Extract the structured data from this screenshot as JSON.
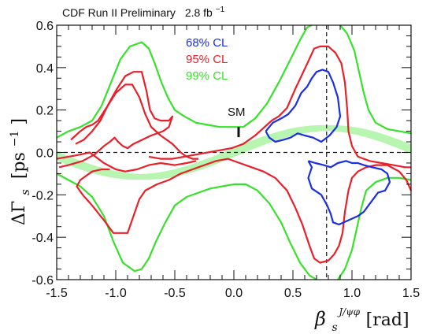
{
  "chart_data": {
    "type": "line",
    "title": "CDF  Run II Preliminary",
    "luminosity": "2.8 fb",
    "luminosity_exp": "−1",
    "xlabel_main": "β",
    "xlabel_sub": "s",
    "xlabel_sup": "J/ψφ",
    "xlabel_unit": "[rad]",
    "ylabel_main": "ΔΓ",
    "ylabel_sub": "s",
    "ylabel_unit": "[ps",
    "ylabel_exp": "−1",
    "ylabel_close": "]",
    "xlim": [
      -1.5,
      1.5
    ],
    "ylim": [
      -0.6,
      0.6
    ],
    "x_ticks": [
      "-1.5",
      "-1.0",
      "-0.5",
      "0.0",
      "0.5",
      "1.0",
      "1.5"
    ],
    "y_ticks": [
      "0.6",
      "0.4",
      "0.2",
      "0.0",
      "-0.2",
      "-0.4",
      "-0.6"
    ],
    "grid": false,
    "legend_position": "top-center",
    "sm_label": "SM",
    "sm_point": {
      "x": 0.04,
      "y": 0.096,
      "y_err": 0.024
    },
    "reference_lines": {
      "horizontal_y": 0.0,
      "vertical_x": 0.785
    },
    "band": {
      "color": "#b8f5b0",
      "center_amplitude": 0.115,
      "halfwidth": 0.022
    },
    "series": [
      {
        "name": "68% CL",
        "color": "#1a2fe0",
        "contours": [
          [
            [
              0.27,
              0.1
            ],
            [
              0.33,
              0.14
            ],
            [
              0.4,
              0.16
            ],
            [
              0.46,
              0.18
            ],
            [
              0.52,
              0.22
            ],
            [
              0.57,
              0.28
            ],
            [
              0.62,
              0.31
            ],
            [
              0.66,
              0.35
            ],
            [
              0.7,
              0.38
            ],
            [
              0.75,
              0.39
            ],
            [
              0.8,
              0.38
            ],
            [
              0.84,
              0.33
            ],
            [
              0.88,
              0.26
            ],
            [
              0.9,
              0.17
            ],
            [
              0.87,
              0.12
            ],
            [
              0.81,
              0.08
            ],
            [
              0.74,
              0.05
            ],
            [
              0.67,
              0.07
            ],
            [
              0.6,
              0.08
            ],
            [
              0.54,
              0.09
            ],
            [
              0.48,
              0.07
            ],
            [
              0.42,
              0.06
            ],
            [
              0.35,
              0.05
            ],
            [
              0.3,
              0.07
            ],
            [
              0.27,
              0.1
            ]
          ],
          [
            [
              0.63,
              -0.04
            ],
            [
              0.69,
              -0.05
            ],
            [
              0.76,
              -0.06
            ],
            [
              0.82,
              -0.07
            ],
            [
              0.88,
              -0.05
            ],
            [
              0.95,
              -0.04
            ],
            [
              1.0,
              -0.05
            ],
            [
              1.05,
              -0.05
            ],
            [
              1.1,
              -0.06
            ],
            [
              1.17,
              -0.07
            ],
            [
              1.25,
              -0.08
            ],
            [
              1.3,
              -0.1
            ],
            [
              1.32,
              -0.14
            ],
            [
              1.28,
              -0.18
            ],
            [
              1.22,
              -0.19
            ],
            [
              1.18,
              -0.22
            ],
            [
              1.14,
              -0.25
            ],
            [
              1.1,
              -0.28
            ],
            [
              1.05,
              -0.3
            ],
            [
              0.97,
              -0.32
            ],
            [
              0.89,
              -0.34
            ],
            [
              0.84,
              -0.33
            ],
            [
              0.82,
              -0.29
            ],
            [
              0.79,
              -0.25
            ],
            [
              0.74,
              -0.2
            ],
            [
              0.66,
              -0.17
            ],
            [
              0.63,
              -0.12
            ],
            [
              0.66,
              -0.07
            ],
            [
              0.63,
              -0.04
            ]
          ]
        ]
      },
      {
        "name": "95% CL",
        "color": "#e8202a",
        "contours": [
          [
            [
              -1.34,
              0.04
            ],
            [
              -1.27,
              0.06
            ],
            [
              -1.2,
              0.1
            ],
            [
              -1.13,
              0.15
            ],
            [
              -1.06,
              0.23
            ],
            [
              -0.99,
              0.3
            ],
            [
              -0.92,
              0.36
            ],
            [
              -0.85,
              0.38
            ],
            [
              -0.78,
              0.38
            ],
            [
              -0.74,
              0.29
            ],
            [
              -0.71,
              0.2
            ],
            [
              -0.67,
              0.16
            ],
            [
              -0.62,
              0.15
            ],
            [
              -0.55,
              0.15
            ],
            [
              -0.52,
              0.17
            ],
            [
              -0.55,
              0.12
            ],
            [
              -0.6,
              0.1
            ],
            [
              -0.7,
              0.08
            ],
            [
              -0.85,
              0.04
            ],
            [
              -0.9,
              0.02
            ],
            [
              -0.94,
              0.03
            ],
            [
              -0.98,
              0.05
            ],
            [
              -1.01,
              0.07
            ],
            [
              -1.05,
              0.05
            ],
            [
              -1.1,
              0.03
            ],
            [
              -1.18,
              -0.01
            ],
            [
              -1.28,
              -0.04
            ],
            [
              -1.4,
              -0.06
            ],
            [
              -1.48,
              -0.07
            ]
          ],
          [
            [
              -1.38,
              0.06
            ],
            [
              -1.34,
              0.08
            ],
            [
              -1.3,
              0.1
            ],
            [
              -1.25,
              0.12
            ],
            [
              -1.2,
              0.13
            ],
            [
              -1.15,
              0.15
            ],
            [
              -1.08,
              0.21
            ],
            [
              -1.0,
              0.28
            ],
            [
              -0.92,
              0.32
            ],
            [
              -0.86,
              0.32
            ],
            [
              -0.8,
              0.26
            ],
            [
              -0.75,
              0.18
            ],
            [
              -0.7,
              0.12
            ],
            [
              -0.62,
              0.08
            ],
            [
              -0.52,
              0.04
            ],
            [
              -0.45,
              0.0
            ],
            [
              -0.4,
              -0.02
            ],
            [
              -0.35,
              -0.03
            ],
            [
              -0.3,
              -0.03
            ]
          ],
          [
            [
              -0.72,
              -0.02
            ],
            [
              -0.62,
              -0.03
            ],
            [
              -0.52,
              -0.03
            ],
            [
              -0.42,
              -0.02
            ],
            [
              -0.32,
              -0.01
            ],
            [
              -0.22,
              0.0
            ],
            [
              -0.12,
              0.01
            ],
            [
              -0.02,
              0.02
            ],
            [
              0.08,
              0.04
            ],
            [
              0.18,
              0.08
            ],
            [
              0.24,
              0.11
            ],
            [
              0.28,
              0.13
            ],
            [
              0.32,
              0.15
            ],
            [
              0.38,
              0.17
            ],
            [
              0.45,
              0.21
            ],
            [
              0.52,
              0.3
            ],
            [
              0.58,
              0.37
            ],
            [
              0.63,
              0.43
            ],
            [
              0.68,
              0.49
            ],
            [
              0.73,
              0.5
            ],
            [
              0.8,
              0.5
            ],
            [
              0.86,
              0.47
            ],
            [
              0.91,
              0.42
            ],
            [
              0.94,
              0.33
            ],
            [
              0.96,
              0.2
            ],
            [
              0.97,
              0.1
            ],
            [
              1.0,
              0.03
            ],
            [
              1.05,
              -0.02
            ],
            [
              1.15,
              -0.04
            ],
            [
              1.25,
              -0.05
            ],
            [
              1.35,
              -0.06
            ],
            [
              1.45,
              -0.07
            ],
            [
              1.5,
              -0.07
            ]
          ],
          [
            [
              -1.5,
              -0.03
            ],
            [
              -1.4,
              -0.02
            ],
            [
              -1.3,
              -0.01
            ],
            [
              -1.22,
              0.0
            ],
            [
              -1.1,
              -0.05
            ],
            [
              -1.0,
              -0.08
            ],
            [
              -0.92,
              -0.09
            ],
            [
              -0.82,
              -0.08
            ],
            [
              -0.72,
              -0.06
            ],
            [
              -0.62,
              -0.05
            ],
            [
              -0.5,
              -0.06
            ],
            [
              -0.4,
              -0.05
            ],
            [
              -0.32,
              -0.04
            ]
          ],
          [
            [
              -1.05,
              -0.08
            ],
            [
              -1.12,
              -0.08
            ],
            [
              -1.2,
              -0.09
            ],
            [
              -1.3,
              -0.13
            ],
            [
              -1.33,
              -0.16
            ],
            [
              -1.28,
              -0.2
            ],
            [
              -1.2,
              -0.25
            ],
            [
              -1.1,
              -0.32
            ],
            [
              -1.02,
              -0.38
            ],
            [
              -0.9,
              -0.38
            ],
            [
              -0.85,
              -0.3
            ],
            [
              -0.8,
              -0.22
            ],
            [
              -0.75,
              -0.18
            ],
            [
              -0.65,
              -0.15
            ],
            [
              -0.55,
              -0.13
            ],
            [
              -0.45,
              -0.1
            ],
            [
              -0.35,
              -0.08
            ],
            [
              -0.25,
              -0.06
            ],
            [
              -0.15,
              -0.04
            ],
            [
              -0.05,
              -0.03
            ],
            [
              0.05,
              -0.05
            ],
            [
              0.15,
              -0.07
            ],
            [
              0.25,
              -0.09
            ],
            [
              0.35,
              -0.12
            ],
            [
              0.45,
              -0.18
            ],
            [
              0.52,
              -0.26
            ],
            [
              0.58,
              -0.34
            ],
            [
              0.64,
              -0.44
            ],
            [
              0.68,
              -0.5
            ],
            [
              0.73,
              -0.52
            ],
            [
              0.8,
              -0.51
            ],
            [
              0.85,
              -0.48
            ],
            [
              0.89,
              -0.44
            ],
            [
              0.92,
              -0.38
            ],
            [
              0.94,
              -0.28
            ],
            [
              0.97,
              -0.18
            ],
            [
              1.0,
              -0.12
            ],
            [
              1.05,
              -0.09
            ],
            [
              1.12,
              -0.07
            ],
            [
              1.2,
              -0.06
            ],
            [
              1.3,
              -0.06
            ],
            [
              1.4,
              -0.09
            ],
            [
              1.46,
              -0.13
            ],
            [
              1.5,
              -0.18
            ]
          ]
        ]
      },
      {
        "name": "99% CL",
        "color": "#39e02c",
        "contours": [
          [
            [
              -1.5,
              0.07
            ],
            [
              -1.4,
              0.1
            ],
            [
              -1.3,
              0.12
            ],
            [
              -1.2,
              0.15
            ],
            [
              -1.12,
              0.22
            ],
            [
              -1.04,
              0.33
            ],
            [
              -0.96,
              0.44
            ],
            [
              -0.88,
              0.5
            ],
            [
              -0.78,
              0.52
            ],
            [
              -0.72,
              0.49
            ],
            [
              -0.67,
              0.42
            ],
            [
              -0.62,
              0.34
            ],
            [
              -0.56,
              0.26
            ],
            [
              -0.5,
              0.2
            ],
            [
              -0.42,
              0.17
            ],
            [
              -0.32,
              0.14
            ],
            [
              -0.22,
              0.13
            ],
            [
              -0.12,
              0.12
            ],
            [
              -0.02,
              0.12
            ],
            [
              0.08,
              0.12
            ],
            [
              0.18,
              0.16
            ],
            [
              0.28,
              0.23
            ],
            [
              0.38,
              0.33
            ],
            [
              0.48,
              0.44
            ],
            [
              0.56,
              0.53
            ],
            [
              0.62,
              0.59
            ],
            [
              0.66,
              0.62
            ]
          ],
          [
            [
              0.9,
              0.62
            ],
            [
              0.96,
              0.56
            ],
            [
              1.02,
              0.48
            ],
            [
              1.06,
              0.38
            ],
            [
              1.1,
              0.28
            ],
            [
              1.14,
              0.2
            ],
            [
              1.2,
              0.14
            ],
            [
              1.3,
              0.11
            ],
            [
              1.4,
              0.1
            ],
            [
              1.5,
              0.09
            ]
          ],
          [
            [
              -1.5,
              -0.1
            ],
            [
              -1.4,
              -0.13
            ],
            [
              -1.3,
              -0.16
            ],
            [
              -1.2,
              -0.21
            ],
            [
              -1.1,
              -0.3
            ],
            [
              -1.02,
              -0.42
            ],
            [
              -0.94,
              -0.52
            ],
            [
              -0.84,
              -0.56
            ],
            [
              -0.78,
              -0.55
            ],
            [
              -0.72,
              -0.5
            ],
            [
              -0.66,
              -0.42
            ],
            [
              -0.58,
              -0.33
            ],
            [
              -0.5,
              -0.25
            ],
            [
              -0.4,
              -0.21
            ],
            [
              -0.3,
              -0.19
            ],
            [
              -0.2,
              -0.17
            ],
            [
              -0.1,
              -0.16
            ],
            [
              0.0,
              -0.15
            ],
            [
              0.1,
              -0.15
            ],
            [
              0.2,
              -0.18
            ],
            [
              0.3,
              -0.24
            ],
            [
              0.4,
              -0.33
            ],
            [
              0.48,
              -0.43
            ],
            [
              0.56,
              -0.52
            ],
            [
              0.64,
              -0.58
            ],
            [
              0.7,
              -0.62
            ]
          ],
          [
            [
              0.88,
              -0.62
            ],
            [
              0.94,
              -0.55
            ],
            [
              1.0,
              -0.46
            ],
            [
              1.04,
              -0.36
            ],
            [
              1.08,
              -0.26
            ],
            [
              1.12,
              -0.18
            ],
            [
              1.2,
              -0.14
            ],
            [
              1.3,
              -0.12
            ],
            [
              1.4,
              -0.12
            ],
            [
              1.5,
              -0.13
            ]
          ]
        ]
      }
    ]
  }
}
